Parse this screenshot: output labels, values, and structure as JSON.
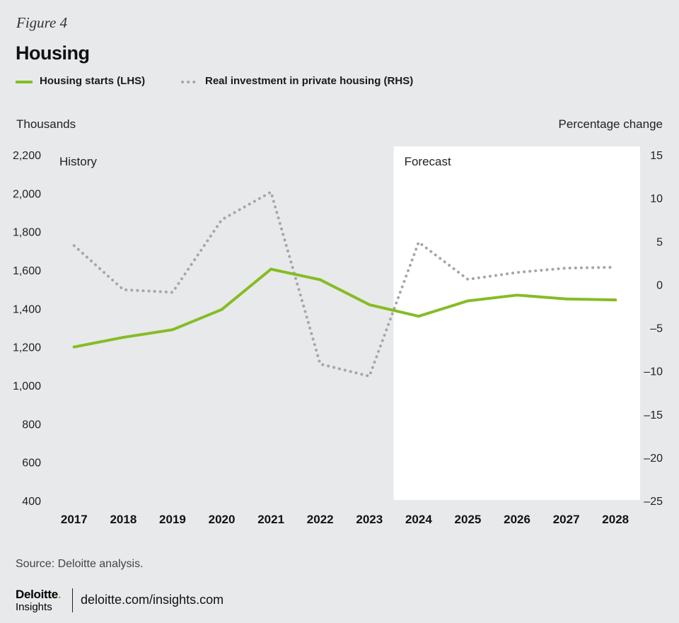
{
  "figure_label": "Figure 4",
  "title": "Housing",
  "legend": {
    "housing_starts": "Housing starts (LHS)",
    "real_investment": "Real investment in private housing (RHS)"
  },
  "colors": {
    "housing_starts": "#86bc25",
    "real_investment": "#a5a6a7",
    "forecast_bg": "#ffffff",
    "background": "#e8e9ea"
  },
  "source": "Source: Deloitte analysis.",
  "logo": {
    "main": "Deloitte",
    "dot": ".",
    "sub": "Insights"
  },
  "site": "deloitte.com/insights.com",
  "chart_data": {
    "type": "line",
    "title": "Housing",
    "x": [
      "2017",
      "2018",
      "2019",
      "2020",
      "2021",
      "2022",
      "2023",
      "2024",
      "2025",
      "2026",
      "2027",
      "2028"
    ],
    "ylabel_left": "Thousands",
    "ylabel_right": "Percentage change",
    "ylim_left": [
      400,
      2200
    ],
    "yticks_left": [
      400,
      600,
      800,
      1000,
      1200,
      1400,
      1600,
      1800,
      2000,
      2200
    ],
    "yticks_left_labels": [
      "400",
      "600",
      "800",
      "1,000",
      "1,200",
      "1,400",
      "1,600",
      "1,800",
      "2,000",
      "2,200"
    ],
    "ylim_right": [
      -25,
      15
    ],
    "yticks_right": [
      -25,
      -20,
      -15,
      -10,
      -5,
      0,
      5,
      10,
      15
    ],
    "yticks_right_labels": [
      "–25",
      "–20",
      "–15",
      "–10",
      "–5",
      "0",
      "5",
      "10",
      "15"
    ],
    "regions": [
      {
        "label": "History",
        "from": "2017",
        "to": "2023"
      },
      {
        "label": "Forecast",
        "from": "2024",
        "to": "2028"
      }
    ],
    "series": [
      {
        "name": "Housing starts (LHS)",
        "axis": "left",
        "style": "solid",
        "values": [
          1200,
          1250,
          1290,
          1395,
          1605,
          1550,
          1420,
          1360,
          1440,
          1470,
          1450,
          1445
        ]
      },
      {
        "name": "Real investment in private housing (RHS)",
        "axis": "right",
        "style": "dotted",
        "values": [
          4.5,
          -0.6,
          -0.9,
          7.5,
          10.7,
          -9.2,
          -10.6,
          4.9,
          0.6,
          1.4,
          1.9,
          2.0
        ]
      }
    ],
    "grid": false,
    "legend_position": "top-left"
  }
}
